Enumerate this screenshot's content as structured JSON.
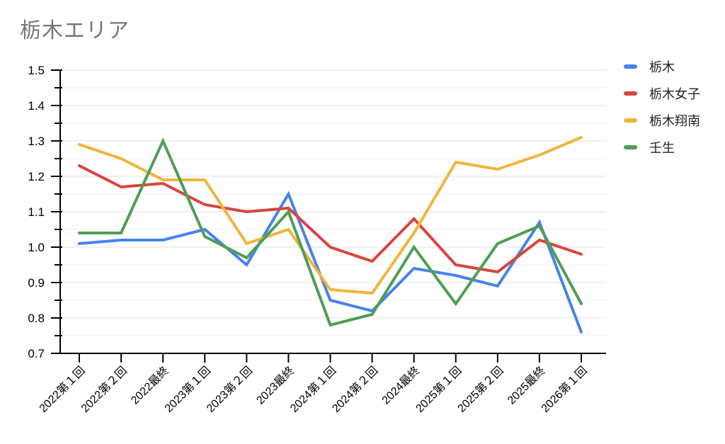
{
  "title": {
    "text": "栃木エリア",
    "color": "#767676"
  },
  "axis": {
    "y_tick_labels": [
      "1.5",
      "1.4",
      "1.3",
      "1.2",
      "1.1",
      "1.0",
      "0.9",
      "0.8",
      "0.7"
    ],
    "axis_color": "#000000",
    "major_grid_color": "#e2e2e2",
    "minor_grid_color": "#efefef"
  },
  "chart_data": {
    "type": "line",
    "title": "栃木エリア",
    "xlabel": "",
    "ylabel": "",
    "ylim": [
      0.7,
      1.5
    ],
    "ytick_step": 0.1,
    "yminor_step": 0.05,
    "grid": true,
    "legend_position": "right",
    "categories": [
      "2022第１回",
      "2022第２回",
      "2022最終",
      "2023第１回",
      "2023第２回",
      "2023最終",
      "2024第１回",
      "2024第２回",
      "2024最終",
      "2025第１回",
      "2025第２回",
      "2025最終",
      "2026第１回"
    ],
    "series": [
      {
        "name": "栃木",
        "color": "#4683EC",
        "values": [
          1.01,
          1.02,
          1.02,
          1.05,
          0.95,
          1.15,
          0.85,
          0.82,
          0.94,
          0.92,
          0.89,
          1.07,
          0.76
        ]
      },
      {
        "name": "栃木女子",
        "color": "#D8453E",
        "values": [
          1.23,
          1.17,
          1.18,
          1.12,
          1.1,
          1.11,
          1.0,
          0.96,
          1.08,
          0.95,
          0.93,
          1.02,
          0.98
        ]
      },
      {
        "name": "栃木翔南",
        "color": "#F2B43D",
        "values": [
          1.29,
          1.25,
          1.19,
          1.19,
          1.01,
          1.05,
          0.88,
          0.87,
          1.04,
          1.24,
          1.22,
          1.26,
          1.31
        ]
      },
      {
        "name": "壬生",
        "color": "#4F9D55",
        "values": [
          1.04,
          1.04,
          1.3,
          1.03,
          0.97,
          1.1,
          0.78,
          0.81,
          1.0,
          0.84,
          1.01,
          1.06,
          0.84
        ]
      }
    ]
  }
}
